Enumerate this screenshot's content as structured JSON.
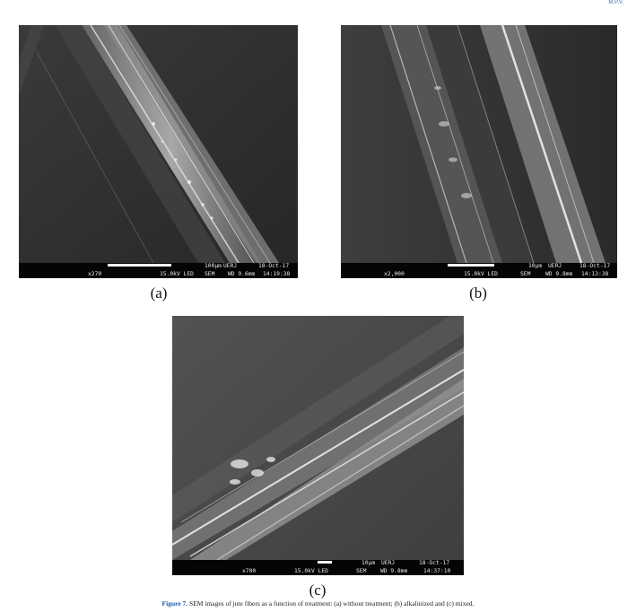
{
  "header": {
    "corner_text": "M.P.V."
  },
  "panels": [
    {
      "id": "a",
      "label": "(a)",
      "databar": {
        "magnification": "x270",
        "voltage": "15.0kV LED",
        "scale": "100µm",
        "institution": "UERJ",
        "date": "18-Oct-17",
        "mode": "SEM",
        "wd": "WD 9.6mm",
        "time": "14:19:38"
      }
    },
    {
      "id": "b",
      "label": "(b)",
      "databar": {
        "magnification": "x2,000",
        "voltage": "15.0kV LED",
        "scale": "10µm",
        "institution": "UERJ",
        "date": "18-Oct-17",
        "mode": "SEM",
        "wd": "WD 9.8mm",
        "time": "14:13:38"
      }
    },
    {
      "id": "c",
      "label": "(c)",
      "databar": {
        "magnification": "x700",
        "voltage": "15.0kV LED",
        "scale": "10µm",
        "institution": "UERJ",
        "date": "18-Oct-17",
        "mode": "SEM",
        "wd": "WD 9.8mm",
        "time": "14:37:10"
      }
    }
  ],
  "caption": {
    "figure_number": "Figure 7.",
    "text": " SEM images of jute fibers as a function of treatment: (a) without treatment; (b) alkalinized and (c) mixed."
  }
}
